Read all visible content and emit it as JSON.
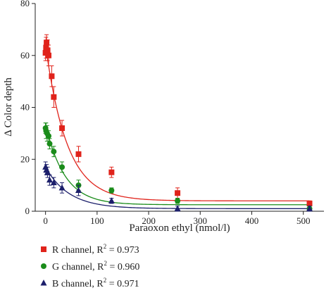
{
  "chart_data": {
    "type": "scatter",
    "xlabel": "Paraoxon ethyl (nmol/l)",
    "ylabel": "Δ Color depth",
    "xlim": [
      -20,
      540
    ],
    "ylim": [
      0,
      80
    ],
    "xticks": [
      0,
      100,
      200,
      300,
      400,
      500
    ],
    "yticks": [
      0,
      20,
      40,
      60,
      80
    ],
    "grid": false,
    "legend_position": "bottom-left",
    "series": [
      {
        "name": "R channel",
        "r2": "0.973",
        "color": "#e0231b",
        "marker": "square",
        "points": [
          {
            "x": 0,
            "y": 61,
            "err": 3
          },
          {
            "x": 1,
            "y": 63,
            "err": 4
          },
          {
            "x": 2,
            "y": 65,
            "err": 3
          },
          {
            "x": 4,
            "y": 62,
            "err": 4
          },
          {
            "x": 6,
            "y": 60,
            "err": 4
          },
          {
            "x": 12,
            "y": 52,
            "err": 4
          },
          {
            "x": 16,
            "y": 44,
            "err": 4
          },
          {
            "x": 32,
            "y": 32,
            "err": 3
          },
          {
            "x": 64,
            "y": 22,
            "err": 3
          },
          {
            "x": 128,
            "y": 15,
            "err": 2
          },
          {
            "x": 256,
            "y": 7,
            "err": 2
          },
          {
            "x": 512,
            "y": 3,
            "err": 1
          }
        ],
        "fit": {
          "a": 60,
          "k": 0.024,
          "c": 4
        }
      },
      {
        "name": "G channel",
        "r2": "0.960",
        "color": "#1a8c1a",
        "marker": "circle",
        "points": [
          {
            "x": 0,
            "y": 32,
            "err": 2
          },
          {
            "x": 1,
            "y": 31,
            "err": 3
          },
          {
            "x": 3,
            "y": 30,
            "err": 3
          },
          {
            "x": 6,
            "y": 29,
            "err": 2
          },
          {
            "x": 8,
            "y": 26,
            "err": 2
          },
          {
            "x": 16,
            "y": 23,
            "err": 2
          },
          {
            "x": 32,
            "y": 17,
            "err": 2
          },
          {
            "x": 64,
            "y": 10,
            "err": 2
          },
          {
            "x": 128,
            "y": 8,
            "err": 1
          },
          {
            "x": 256,
            "y": 4,
            "err": 1
          },
          {
            "x": 512,
            "y": 1,
            "err": 1
          }
        ],
        "fit": {
          "a": 31,
          "k": 0.027,
          "c": 2.5
        }
      },
      {
        "name": "B channel",
        "r2": "0.971",
        "color": "#1c1f6b",
        "marker": "triangle",
        "points": [
          {
            "x": 0,
            "y": 17,
            "err": 2
          },
          {
            "x": 2,
            "y": 16,
            "err": 2
          },
          {
            "x": 4,
            "y": 15,
            "err": 2
          },
          {
            "x": 8,
            "y": 12,
            "err": 2
          },
          {
            "x": 16,
            "y": 11,
            "err": 2
          },
          {
            "x": 32,
            "y": 9,
            "err": 2
          },
          {
            "x": 64,
            "y": 8,
            "err": 2
          },
          {
            "x": 128,
            "y": 4,
            "err": 1
          },
          {
            "x": 256,
            "y": 1,
            "err": 1
          },
          {
            "x": 512,
            "y": 1,
            "err": 1
          }
        ],
        "fit": {
          "a": 16,
          "k": 0.022,
          "c": 1
        }
      }
    ]
  }
}
